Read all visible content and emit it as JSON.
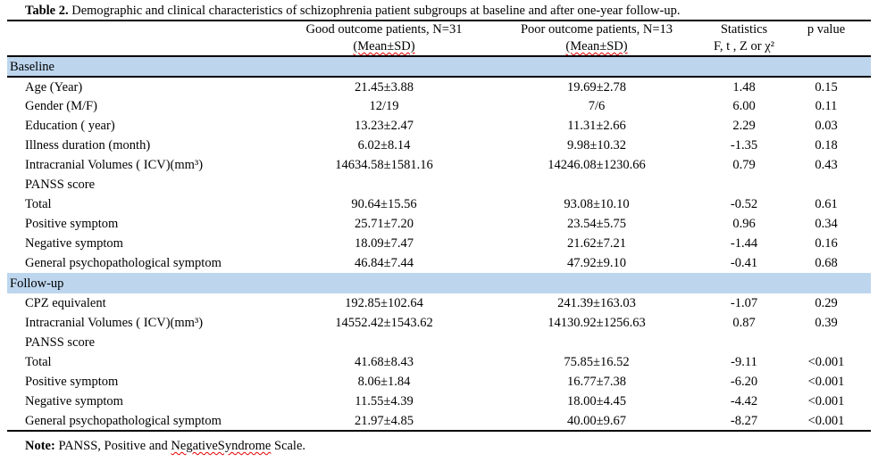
{
  "title": {
    "label": "Table 2.",
    "text": " Demographic and clinical characteristics of schizophrenia patient subgroups at baseline and after one-year follow-up."
  },
  "table": {
    "header": {
      "row_label": {
        "line1": "",
        "line2": ""
      },
      "good": {
        "line1": "Good outcome patients, N=31",
        "line2": "(Mean±SD)"
      },
      "poor": {
        "line1": "Poor outcome patients, N=13",
        "line2": "(Mean±SD)"
      },
      "statistics": {
        "line1": "Statistics",
        "line2": "F, t , Z or χ²"
      },
      "p_value": {
        "line1": "p value",
        "line2": ""
      }
    },
    "rows": [
      {
        "type": "section",
        "label": "Baseline"
      },
      {
        "type": "data",
        "label": "Age (Year)",
        "good": "21.45±3.88",
        "poor": "19.69±2.78",
        "stat": "1.48",
        "p": "0.15"
      },
      {
        "type": "data",
        "label": "Gender (M/F)",
        "good": "12/19",
        "poor": "7/6",
        "stat": "6.00",
        "p": "0.11"
      },
      {
        "type": "data",
        "label": "Education ( year)",
        "good": "13.23±2.47",
        "poor": "11.31±2.66",
        "stat": "2.29",
        "p": "0.03"
      },
      {
        "type": "data",
        "label": "Illness duration (month)",
        "good": "6.02±8.14",
        "poor": "9.98±10.32",
        "stat": "-1.35",
        "p": "0.18"
      },
      {
        "type": "data",
        "label": "Intracranial Volumes ( ICV)(mm³)",
        "good": "14634.58±1581.16",
        "poor": "14246.08±1230.66",
        "stat": "0.79",
        "p": "0.43"
      },
      {
        "type": "data",
        "label": "PANSS score",
        "good": "",
        "poor": "",
        "stat": "",
        "p": ""
      },
      {
        "type": "data",
        "label": "Total",
        "good": "90.64±15.56",
        "poor": "93.08±10.10",
        "stat": "-0.52",
        "p": "0.61"
      },
      {
        "type": "data",
        "label": "Positive symptom",
        "good": "25.71±7.20",
        "poor": "23.54±5.75",
        "stat": "0.96",
        "p": "0.34"
      },
      {
        "type": "data",
        "label": "Negative symptom",
        "good": "18.09±7.47",
        "poor": "21.62±7.21",
        "stat": "-1.44",
        "p": "0.16"
      },
      {
        "type": "data",
        "label": "General psychopathological symptom",
        "good": "46.84±7.44",
        "poor": "47.92±9.10",
        "stat": "-0.41",
        "p": "0.68"
      },
      {
        "type": "section",
        "label": "Follow-up"
      },
      {
        "type": "data",
        "label": "CPZ equivalent",
        "good": "192.85±102.64",
        "poor": "241.39±163.03",
        "stat": "-1.07",
        "p": "0.29"
      },
      {
        "type": "data",
        "label": "Intracranial Volumes ( ICV)(mm³)",
        "good": "14552.42±1543.62",
        "poor": "14130.92±1256.63",
        "stat": "0.87",
        "p": "0.39"
      },
      {
        "type": "data",
        "label": "PANSS score",
        "good": "",
        "poor": "",
        "stat": "",
        "p": ""
      },
      {
        "type": "data",
        "label": "Total",
        "good": "41.68±8.43",
        "poor": "75.85±16.52",
        "stat": "-9.11",
        "p": "<0.001"
      },
      {
        "type": "data",
        "label": "Positive symptom",
        "good": "8.06±1.84",
        "poor": "16.77±7.38",
        "stat": "-6.20",
        "p": "<0.001"
      },
      {
        "type": "data",
        "label": "Negative symptom",
        "good": "11.55±4.39",
        "poor": "18.00±4.45",
        "stat": "-4.42",
        "p": "<0.001"
      },
      {
        "type": "data",
        "label": "General psychopathological symptom",
        "good": "21.97±4.85",
        "poor": "40.00±9.67",
        "stat": "-8.27",
        "p": "<0.001"
      }
    ]
  },
  "note": {
    "label": "Note:",
    "before": " PANSS, Positive and ",
    "misspelled": "NegativeSyndrome",
    "after": " Scale."
  },
  "colors": {
    "section_band": "#bdd6ee",
    "spellcheck_underline": "#e60000",
    "border": "#000000"
  }
}
